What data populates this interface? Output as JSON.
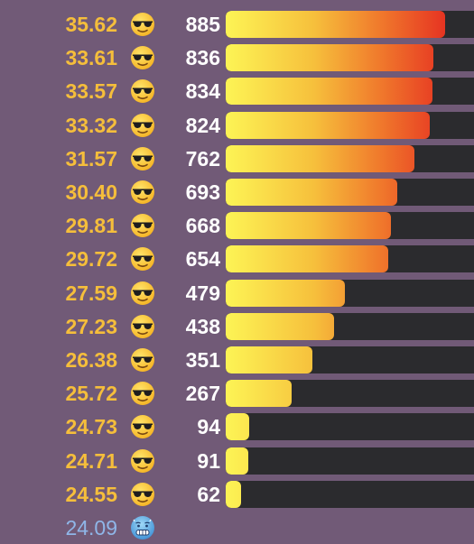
{
  "max_count": 885,
  "colors": {
    "background": "#715a77",
    "warm_temp": "#f5be3b",
    "cold_temp": "#8fb6e8",
    "count": "#ffffff",
    "bar_track": "#2b2b2e",
    "bar_gradient": [
      "#fdf455",
      "#f6c03c",
      "#f07a2c",
      "#e63422"
    ]
  },
  "rows": [
    {
      "temp": "35.62",
      "emoji": "smiling-face-with-sunglasses-icon",
      "count": 885
    },
    {
      "temp": "33.61",
      "emoji": "smiling-face-with-sunglasses-icon",
      "count": 836
    },
    {
      "temp": "33.57",
      "emoji": "smiling-face-with-sunglasses-icon",
      "count": 834
    },
    {
      "temp": "33.32",
      "emoji": "smiling-face-with-sunglasses-icon",
      "count": 824
    },
    {
      "temp": "31.57",
      "emoji": "smiling-face-with-sunglasses-icon",
      "count": 762
    },
    {
      "temp": "30.40",
      "emoji": "smiling-face-with-sunglasses-icon",
      "count": 693
    },
    {
      "temp": "29.81",
      "emoji": "smiling-face-with-sunglasses-icon",
      "count": 668
    },
    {
      "temp": "29.72",
      "emoji": "smiling-face-with-sunglasses-icon",
      "count": 654
    },
    {
      "temp": "27.59",
      "emoji": "smiling-face-with-sunglasses-icon",
      "count": 479
    },
    {
      "temp": "27.23",
      "emoji": "smiling-face-with-sunglasses-icon",
      "count": 438
    },
    {
      "temp": "26.38",
      "emoji": "smiling-face-with-sunglasses-icon",
      "count": 351
    },
    {
      "temp": "25.72",
      "emoji": "smiling-face-with-sunglasses-icon",
      "count": 267
    },
    {
      "temp": "24.73",
      "emoji": "smiling-face-with-sunglasses-icon",
      "count": 94
    },
    {
      "temp": "24.71",
      "emoji": "smiling-face-with-sunglasses-icon",
      "count": 91
    },
    {
      "temp": "24.55",
      "emoji": "smiling-face-with-sunglasses-icon",
      "count": 62
    },
    {
      "temp": "24.09",
      "emoji": "cold-face-icon",
      "count": null
    }
  ]
}
